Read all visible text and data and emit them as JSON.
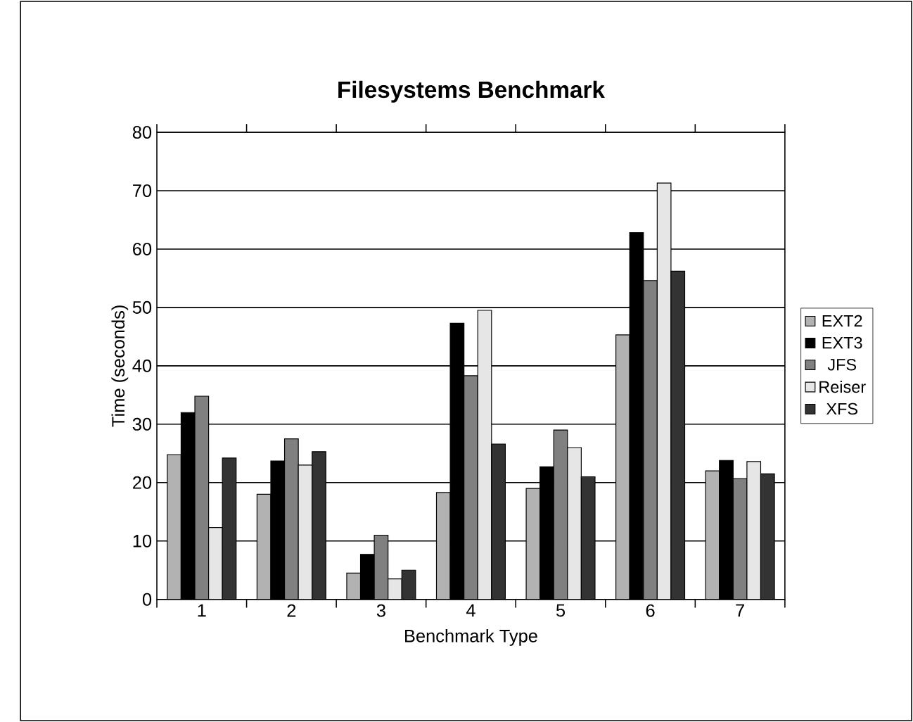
{
  "chart_data": {
    "type": "bar",
    "title": "Filesystems Benchmark",
    "xlabel": "Benchmark Type",
    "ylabel": "Time (seconds)",
    "categories": [
      "1",
      "2",
      "3",
      "4",
      "5",
      "6",
      "7"
    ],
    "series": [
      {
        "name": "EXT2",
        "color": "#b2b2b2",
        "values": [
          24.8,
          18,
          4.5,
          18.3,
          19,
          45.3,
          22
        ]
      },
      {
        "name": "EXT3",
        "color": "#000000",
        "values": [
          32,
          23.7,
          7.7,
          47.3,
          22.7,
          62.8,
          23.8
        ]
      },
      {
        "name": "JFS",
        "color": "#808080",
        "values": [
          34.8,
          27.5,
          11,
          38.3,
          29,
          54.6,
          20.7
        ]
      },
      {
        "name": "Reiser",
        "color": "#e6e6e6",
        "values": [
          12.3,
          23,
          3.5,
          49.5,
          26,
          71.3,
          23.6
        ]
      },
      {
        "name": "XFS",
        "color": "#333333",
        "values": [
          24.2,
          25.3,
          5,
          26.6,
          21,
          56.2,
          21.5
        ]
      }
    ],
    "ylim": [
      0,
      80
    ],
    "yticks": [
      0,
      10,
      20,
      30,
      40,
      50,
      60,
      70,
      80
    ],
    "grid": "y",
    "legend": "right"
  }
}
